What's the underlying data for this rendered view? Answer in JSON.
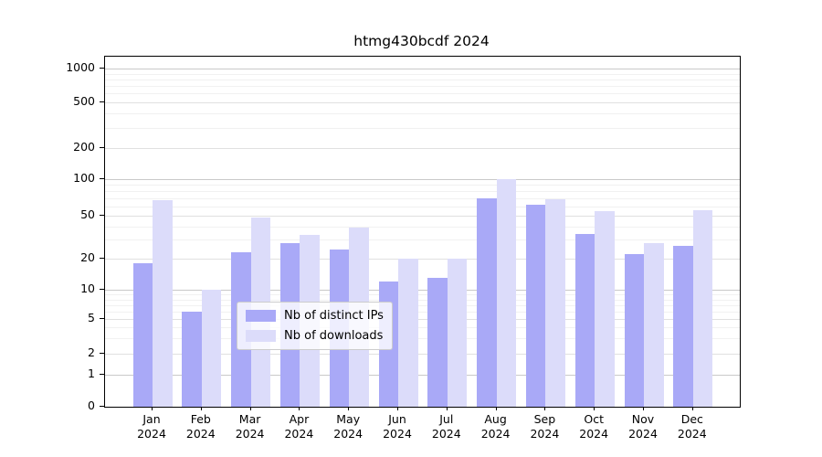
{
  "chart_data": {
    "type": "bar",
    "title": "htmg430bcdf 2024",
    "categories": [
      "Jan 2024",
      "Feb 2024",
      "Mar 2024",
      "Apr 2024",
      "May 2024",
      "Jun 2024",
      "Jul 2024",
      "Aug 2024",
      "Sep 2024",
      "Oct 2024",
      "Nov 2024",
      "Dec 2024"
    ],
    "series": [
      {
        "name": "Nb of distinct IPs",
        "color": "#a9a9f7",
        "values": [
          18,
          6,
          23,
          28,
          24,
          12,
          13,
          70,
          62,
          34,
          22,
          26
        ]
      },
      {
        "name": "Nb of downloads",
        "color": "#dcdcfa",
        "values": [
          67,
          10,
          48,
          33,
          39,
          20,
          20,
          100,
          69,
          55,
          28,
          56
        ]
      }
    ],
    "xlabel": "",
    "ylabel": "",
    "y_scale": "symlog",
    "y_ticks": [
      0,
      1,
      2,
      5,
      10,
      20,
      50,
      100,
      200,
      500,
      1000
    ],
    "ylim": [
      0,
      1300
    ],
    "grid": true,
    "legend_position": "lower center"
  }
}
